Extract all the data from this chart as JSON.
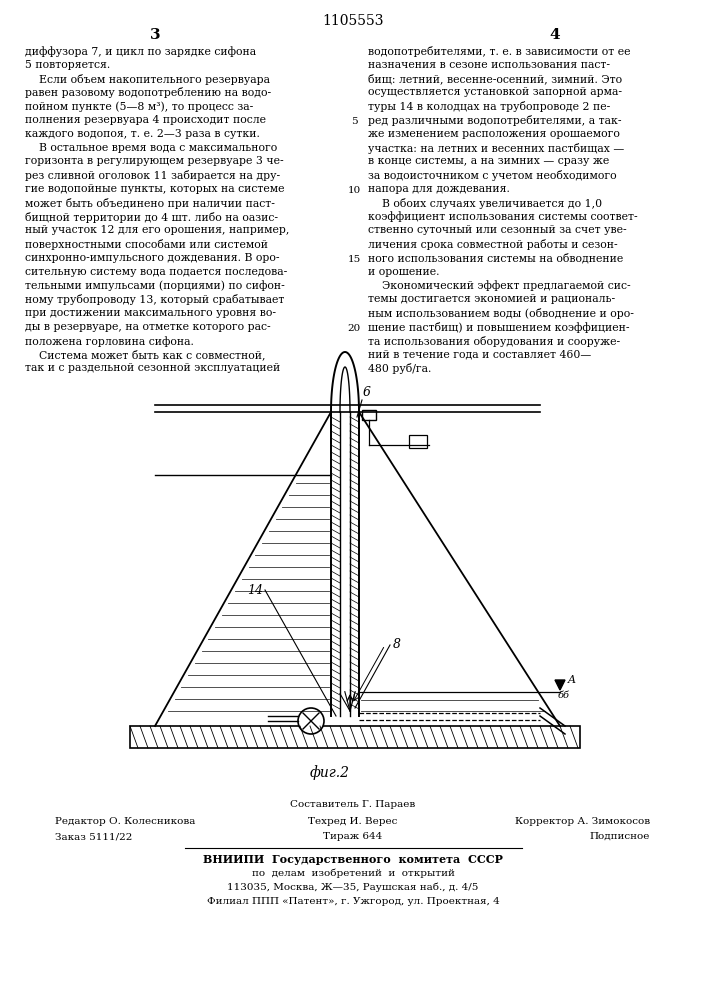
{
  "patent_number": "1105553",
  "page_numbers": [
    "3",
    "4"
  ],
  "col1_text": [
    "диффузора 7, и цикл по зарядке сифона",
    "5 повторяется.",
    "    Если объем накопительного резервуара",
    "равен разовому водопотреблению на водо-",
    "пойном пункте (5—8 м³), то процесс за-",
    "полнения резервуара 4 происходит после",
    "каждого водопоя, т. е. 2—3 раза в сутки.",
    "    В остальное время вода с максимального",
    "горизонта в регулирующем резервуаре 3 че-",
    "рез сливной оголовок 11 забирается на дру-",
    "гие водопойные пункты, которых на системе",
    "может быть объединено при наличии паст-",
    "бищной территории до 4 шт. либо на оазис-",
    "ный участок 12 для его орошения, например,",
    "поверхностными способами или системой",
    "синхронно-импульсного дождевания. В оро-",
    "сительную систему вода подается последова-",
    "тельными импульсами (порциями) по сифон-",
    "ному трубопроводу 13, который срабатывает",
    "при достижении максимального уровня во-",
    "ды в резервуаре, на отметке которого рас-",
    "положена горловина сифона.",
    "    Система может быть как с совместной,",
    "так и с раздельной сезонной эксплуатацией"
  ],
  "col2_text": [
    "водопотребителями, т. е. в зависимости от ее",
    "назначения в сезоне использования паст-",
    "бищ: летний, весенне-осенний, зимний. Это",
    "осуществляется установкой запорной арма-",
    "туры 14 в колодцах на трубопроводе 2 пе-",
    "ред различными водопотребителями, а так-",
    "же изменением расположения орошаемого",
    "участка: на летних и весенних пастбищах —",
    "в конце системы, а на зимних — сразу же",
    "за водоисточником с учетом необходимого",
    "напора для дождевания.",
    "    В обоих случаях увеличивается до 1,0",
    "коэффициент использования системы соответ-",
    "ственно суточный или сезонный за счет уве-",
    "личения срока совместной работы и сезон-",
    "ного использования системы на обводнение",
    "и орошение.",
    "    Экономический эффект предлагаемой сис-",
    "темы достигается экономией и рациональ-",
    "ным использованием воды (обводнение и оро-",
    "шение пастбищ) и повышением коэффициен-",
    "та использования оборудования и сооруже-",
    "ний в течение года и составляет 460—",
    "480 руб/га."
  ],
  "line_numbers": [
    "5",
    "10",
    "15",
    "20"
  ],
  "line_number_rows": [
    6,
    11,
    16,
    21
  ],
  "bottom_line1": "Составитель Г. Параев",
  "bottom_line2_left": "Редактор О. Колесникова",
  "bottom_line2_center": "Техред И. Верес",
  "bottom_line2_right": "Корректор А. Зимокосов",
  "bottom_line3_left": "Заказ 5111/22",
  "bottom_line3_center": "Тираж 644",
  "bottom_line3_right": "Подписное",
  "vniip1": "ВНИИПИ  Государственного  комитета  СССР",
  "vniip2": "по  делам  изобретений  и  открытий",
  "vniip3": "113035, Москва, Ж—35, Раушская наб., д. 4/5",
  "vniip4": "Филиал ППП «Патент», г. Ужгород, ул. Проектная, 4",
  "fig_label": "фиг.2",
  "bg_color": "#ffffff",
  "text_color": "#000000",
  "diagram_color": "#000000"
}
